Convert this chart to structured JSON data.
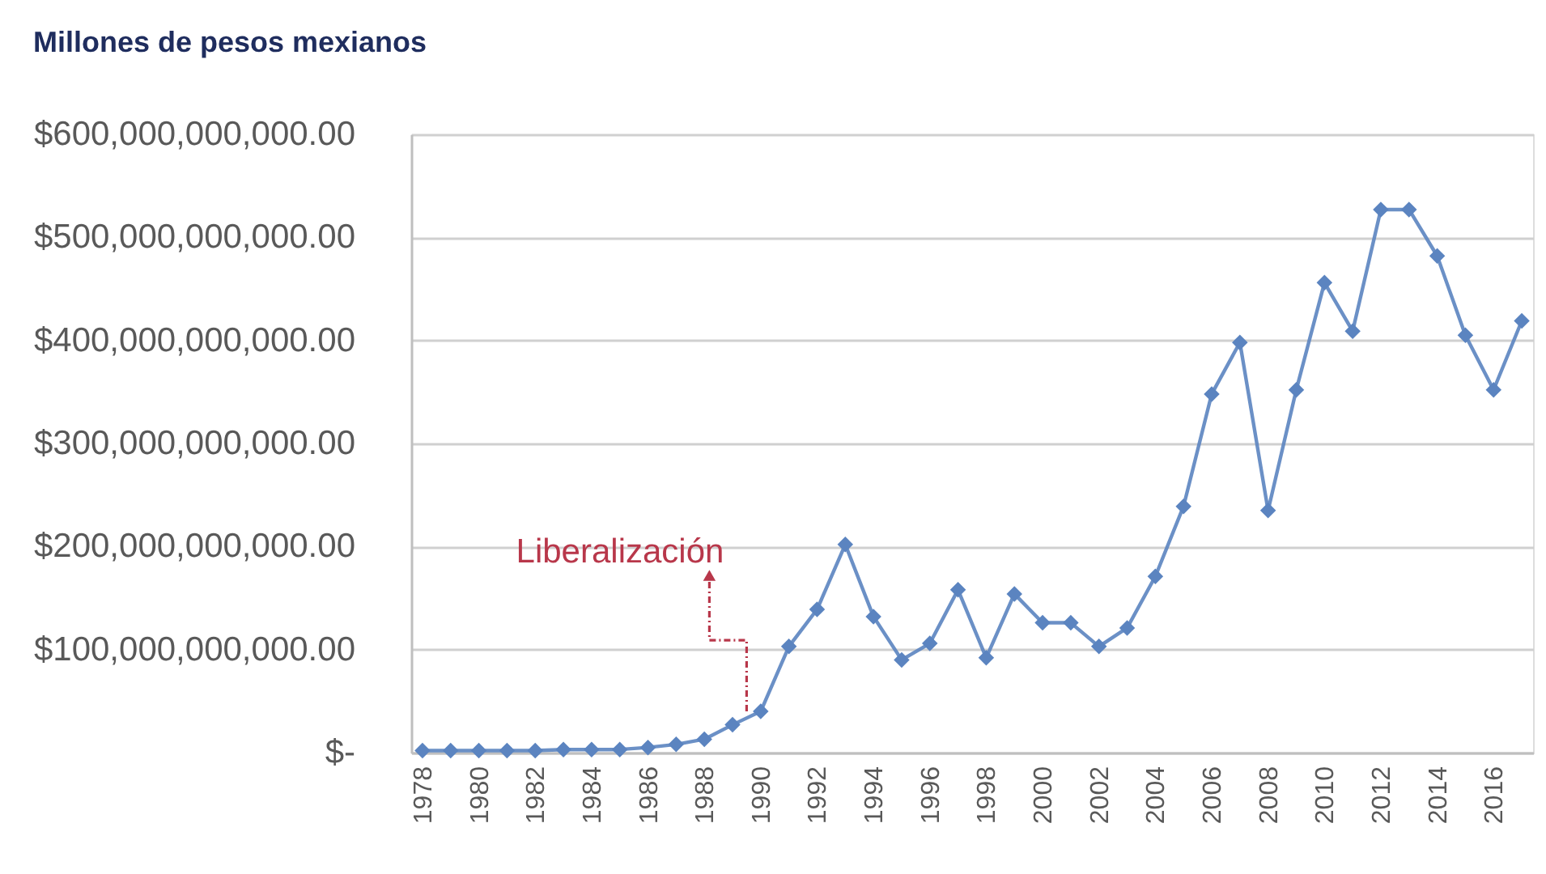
{
  "chart_data": {
    "type": "line",
    "title": "Millones de pesos mexianos",
    "x": [
      1978,
      1979,
      1980,
      1981,
      1982,
      1983,
      1984,
      1985,
      1986,
      1987,
      1988,
      1989,
      1990,
      1991,
      1992,
      1993,
      1994,
      1995,
      1996,
      1997,
      1998,
      1999,
      2000,
      2001,
      2002,
      2003,
      2004,
      2005,
      2006,
      2007,
      2008,
      2009,
      2010,
      2011,
      2012,
      2013,
      2014,
      2015,
      2016,
      2017
    ],
    "series": [
      {
        "color": "#5b84c0",
        "values": [
          2000000000,
          2000000000,
          2000000000,
          2000000000,
          2000000000,
          3000000000,
          3000000000,
          3000000000,
          5000000000,
          8000000000,
          13000000000,
          27000000000,
          40000000000,
          103000000000,
          139000000000,
          202000000000,
          132000000000,
          90000000000,
          106000000000,
          158000000000,
          92000000000,
          154000000000,
          126000000000,
          126000000000,
          103000000000,
          121000000000,
          171000000000,
          239000000000,
          348000000000,
          398000000000,
          235000000000,
          352000000000,
          456000000000,
          409000000000,
          527000000000,
          527000000000,
          482000000000,
          405000000000,
          352000000000,
          419000000000
        ]
      }
    ],
    "xlim": [
      1977.6,
      2017.4
    ],
    "xticks": [
      1978,
      1980,
      1982,
      1984,
      1986,
      1988,
      1990,
      1992,
      1994,
      1996,
      1998,
      2000,
      2002,
      2004,
      2006,
      2008,
      2010,
      2012,
      2014,
      2016
    ],
    "ylim": [
      0,
      600000000000
    ],
    "yticks": [
      {
        "value": 0,
        "label": "$-"
      },
      {
        "value": 100000000000,
        "label": "$100,000,000,000.00"
      },
      {
        "value": 200000000000,
        "label": "$200,000,000,000.00"
      },
      {
        "value": 300000000000,
        "label": "$300,000,000,000.00"
      },
      {
        "value": 400000000000,
        "label": "$400,000,000,000.00"
      },
      {
        "value": 500000000000,
        "label": "$500,000,000,000.00"
      },
      {
        "value": 600000000000,
        "label": "$600,000,000,000.00"
      }
    ],
    "grid": "y",
    "legend": false,
    "marker": "diamond",
    "line_style": "solid",
    "annotations": [
      {
        "text": "Liberalización",
        "x": 1989.5,
        "y": 40000000000
      }
    ]
  }
}
